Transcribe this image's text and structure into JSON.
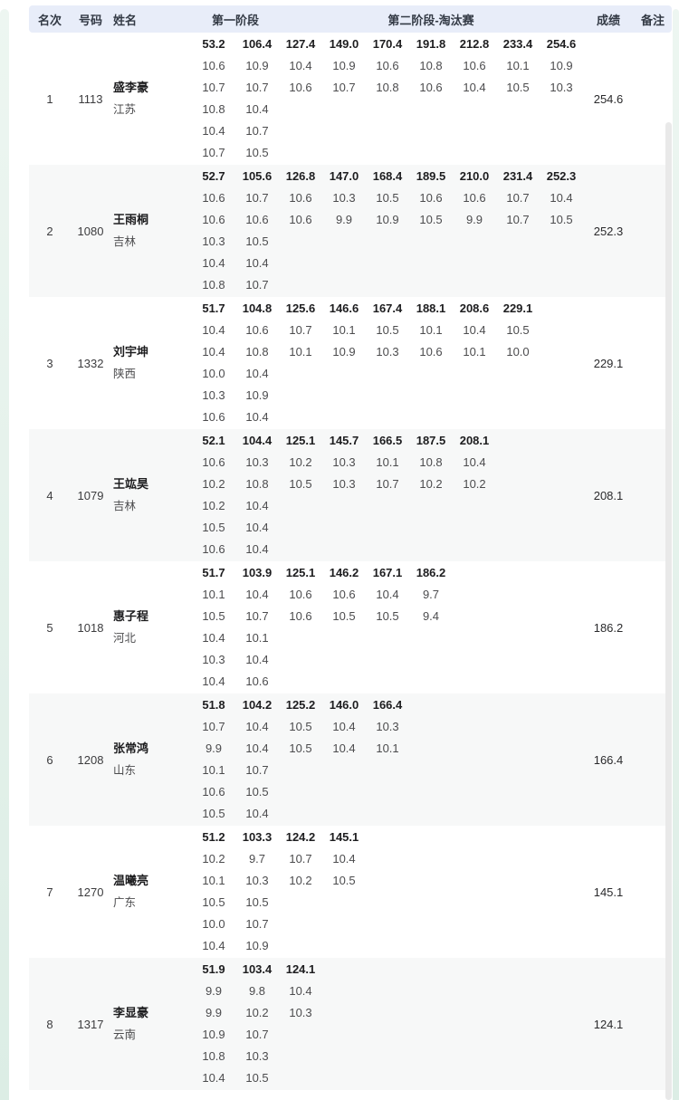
{
  "header": {
    "rank": "名次",
    "bib": "号码",
    "name": "姓名",
    "stage1": "第一阶段",
    "stage2": "第二阶段-淘汰赛",
    "score": "成绩",
    "remarks": "备注"
  },
  "colors": {
    "header_bg": "#e8edf9",
    "alt_row_bg": "#f7f8f8",
    "edge_strip": "#e4f1eb",
    "scrollbar": "#e9e9e9"
  },
  "athletes": [
    {
      "rank": "1",
      "bib": "1113",
      "name": "盛李豪",
      "region": "江苏",
      "score": "254.6",
      "shot_cols": [
        [
          "53.2",
          "10.6",
          "10.7",
          "10.8",
          "10.4",
          "10.7"
        ],
        [
          "106.4",
          "10.9",
          "10.7",
          "10.4",
          "10.7",
          "10.5"
        ],
        [
          "127.4",
          "10.4",
          "10.6"
        ],
        [
          "149.0",
          "10.9",
          "10.7"
        ],
        [
          "170.4",
          "10.6",
          "10.8"
        ],
        [
          "191.8",
          "10.8",
          "10.6"
        ],
        [
          "212.8",
          "10.6",
          "10.4"
        ],
        [
          "233.4",
          "10.1",
          "10.5"
        ],
        [
          "254.6",
          "10.9",
          "10.3"
        ]
      ]
    },
    {
      "rank": "2",
      "bib": "1080",
      "name": "王雨桐",
      "region": "吉林",
      "score": "252.3",
      "shot_cols": [
        [
          "52.7",
          "10.6",
          "10.6",
          "10.3",
          "10.4",
          "10.8"
        ],
        [
          "105.6",
          "10.7",
          "10.6",
          "10.5",
          "10.4",
          "10.7"
        ],
        [
          "126.8",
          "10.6",
          "10.6"
        ],
        [
          "147.0",
          "10.3",
          "9.9"
        ],
        [
          "168.4",
          "10.5",
          "10.9"
        ],
        [
          "189.5",
          "10.6",
          "10.5"
        ],
        [
          "210.0",
          "10.6",
          "9.9"
        ],
        [
          "231.4",
          "10.7",
          "10.7"
        ],
        [
          "252.3",
          "10.4",
          "10.5"
        ]
      ]
    },
    {
      "rank": "3",
      "bib": "1332",
      "name": "刘宇坤",
      "region": "陕西",
      "score": "229.1",
      "shot_cols": [
        [
          "51.7",
          "10.4",
          "10.4",
          "10.0",
          "10.3",
          "10.6"
        ],
        [
          "104.8",
          "10.6",
          "10.8",
          "10.4",
          "10.9",
          "10.4"
        ],
        [
          "125.6",
          "10.7",
          "10.1"
        ],
        [
          "146.6",
          "10.1",
          "10.9"
        ],
        [
          "167.4",
          "10.5",
          "10.3"
        ],
        [
          "188.1",
          "10.1",
          "10.6"
        ],
        [
          "208.6",
          "10.4",
          "10.1"
        ],
        [
          "229.1",
          "10.5",
          "10.0"
        ]
      ]
    },
    {
      "rank": "4",
      "bib": "1079",
      "name": "王竑昊",
      "region": "吉林",
      "score": "208.1",
      "shot_cols": [
        [
          "52.1",
          "10.6",
          "10.2",
          "10.2",
          "10.5",
          "10.6"
        ],
        [
          "104.4",
          "10.3",
          "10.8",
          "10.4",
          "10.4",
          "10.4"
        ],
        [
          "125.1",
          "10.2",
          "10.5"
        ],
        [
          "145.7",
          "10.3",
          "10.3"
        ],
        [
          "166.5",
          "10.1",
          "10.7"
        ],
        [
          "187.5",
          "10.8",
          "10.2"
        ],
        [
          "208.1",
          "10.4",
          "10.2"
        ]
      ]
    },
    {
      "rank": "5",
      "bib": "1018",
      "name": "惠子程",
      "region": "河北",
      "score": "186.2",
      "shot_cols": [
        [
          "51.7",
          "10.1",
          "10.5",
          "10.4",
          "10.3",
          "10.4"
        ],
        [
          "103.9",
          "10.4",
          "10.7",
          "10.1",
          "10.4",
          "10.6"
        ],
        [
          "125.1",
          "10.6",
          "10.6"
        ],
        [
          "146.2",
          "10.6",
          "10.5"
        ],
        [
          "167.1",
          "10.4",
          "10.5"
        ],
        [
          "186.2",
          "9.7",
          "9.4"
        ]
      ]
    },
    {
      "rank": "6",
      "bib": "1208",
      "name": "张常鸿",
      "region": "山东",
      "score": "166.4",
      "shot_cols": [
        [
          "51.8",
          "10.7",
          "9.9",
          "10.1",
          "10.6",
          "10.5"
        ],
        [
          "104.2",
          "10.4",
          "10.4",
          "10.7",
          "10.5",
          "10.4"
        ],
        [
          "125.2",
          "10.5",
          "10.5"
        ],
        [
          "146.0",
          "10.4",
          "10.4"
        ],
        [
          "166.4",
          "10.3",
          "10.1"
        ]
      ]
    },
    {
      "rank": "7",
      "bib": "1270",
      "name": "温曦亮",
      "region": "广东",
      "score": "145.1",
      "shot_cols": [
        [
          "51.2",
          "10.2",
          "10.1",
          "10.5",
          "10.0",
          "10.4"
        ],
        [
          "103.3",
          "9.7",
          "10.3",
          "10.5",
          "10.7",
          "10.9"
        ],
        [
          "124.2",
          "10.7",
          "10.2"
        ],
        [
          "145.1",
          "10.4",
          "10.5"
        ]
      ]
    },
    {
      "rank": "8",
      "bib": "1317",
      "name": "李显豪",
      "region": "云南",
      "score": "124.1",
      "shot_cols": [
        [
          "51.9",
          "9.9",
          "9.9",
          "10.9",
          "10.8",
          "10.4"
        ],
        [
          "103.4",
          "9.8",
          "10.2",
          "10.7",
          "10.3",
          "10.5"
        ],
        [
          "124.1",
          "10.4",
          "10.3"
        ]
      ]
    }
  ]
}
